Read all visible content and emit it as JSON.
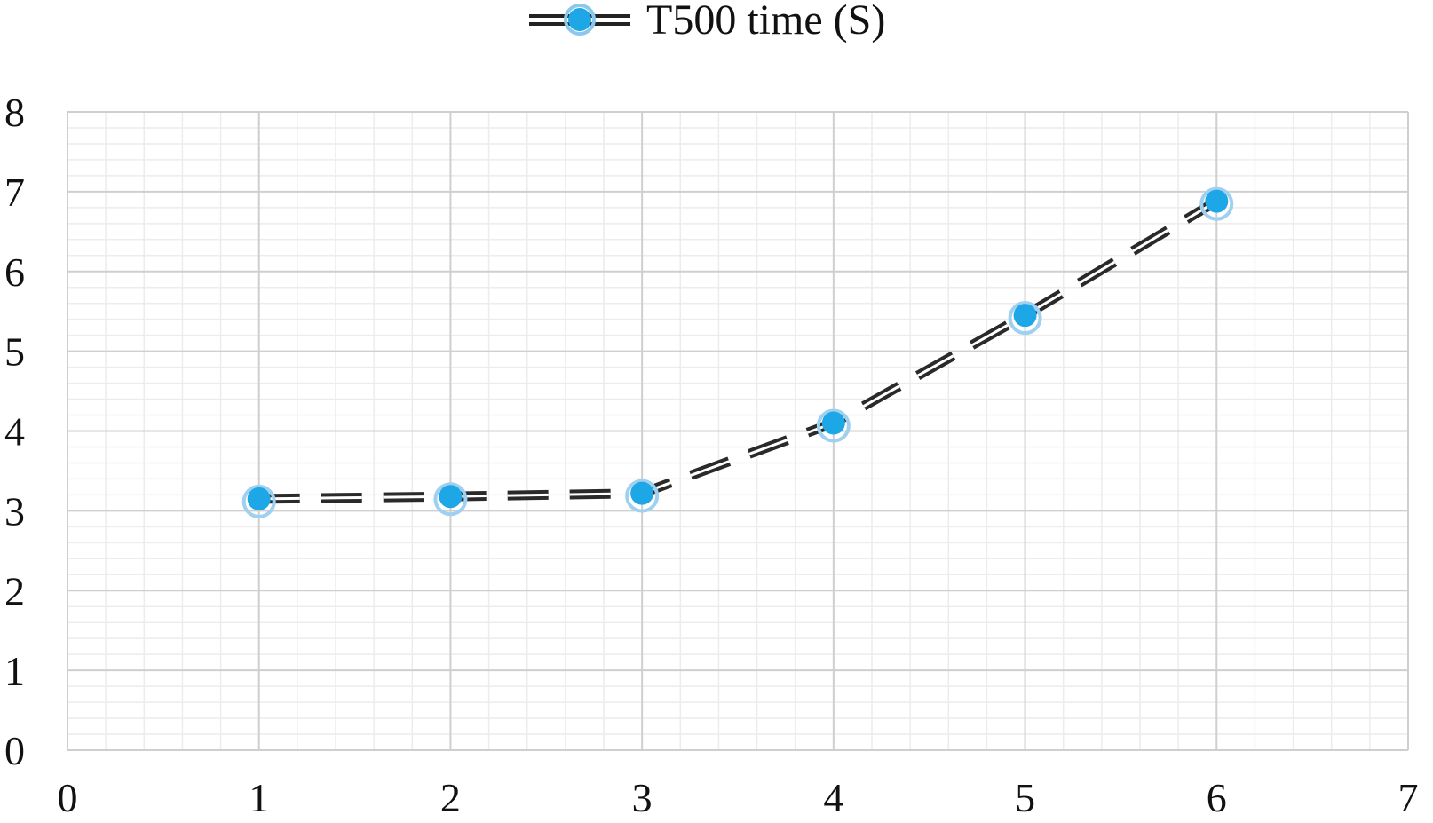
{
  "chart_data": {
    "type": "scatter",
    "title": "",
    "xlabel": "",
    "ylabel": "",
    "xlim": [
      0,
      7
    ],
    "ylim": [
      0,
      8
    ],
    "x_ticks": [
      "0",
      "1",
      "2",
      "3",
      "4",
      "5",
      "6",
      "7"
    ],
    "y_ticks": [
      "0",
      "1",
      "2",
      "3",
      "4",
      "5",
      "6",
      "7",
      "8"
    ],
    "grid": true,
    "minor_grid": true,
    "legend_position": "top-center",
    "series": [
      {
        "name": "T500 time (S)",
        "line_style": "dashed-double",
        "marker_color": "#1ea7e6",
        "x": [
          1,
          2,
          3,
          4,
          5,
          6
        ],
        "y": [
          3.15,
          3.18,
          3.22,
          4.1,
          5.45,
          6.88
        ]
      }
    ]
  }
}
